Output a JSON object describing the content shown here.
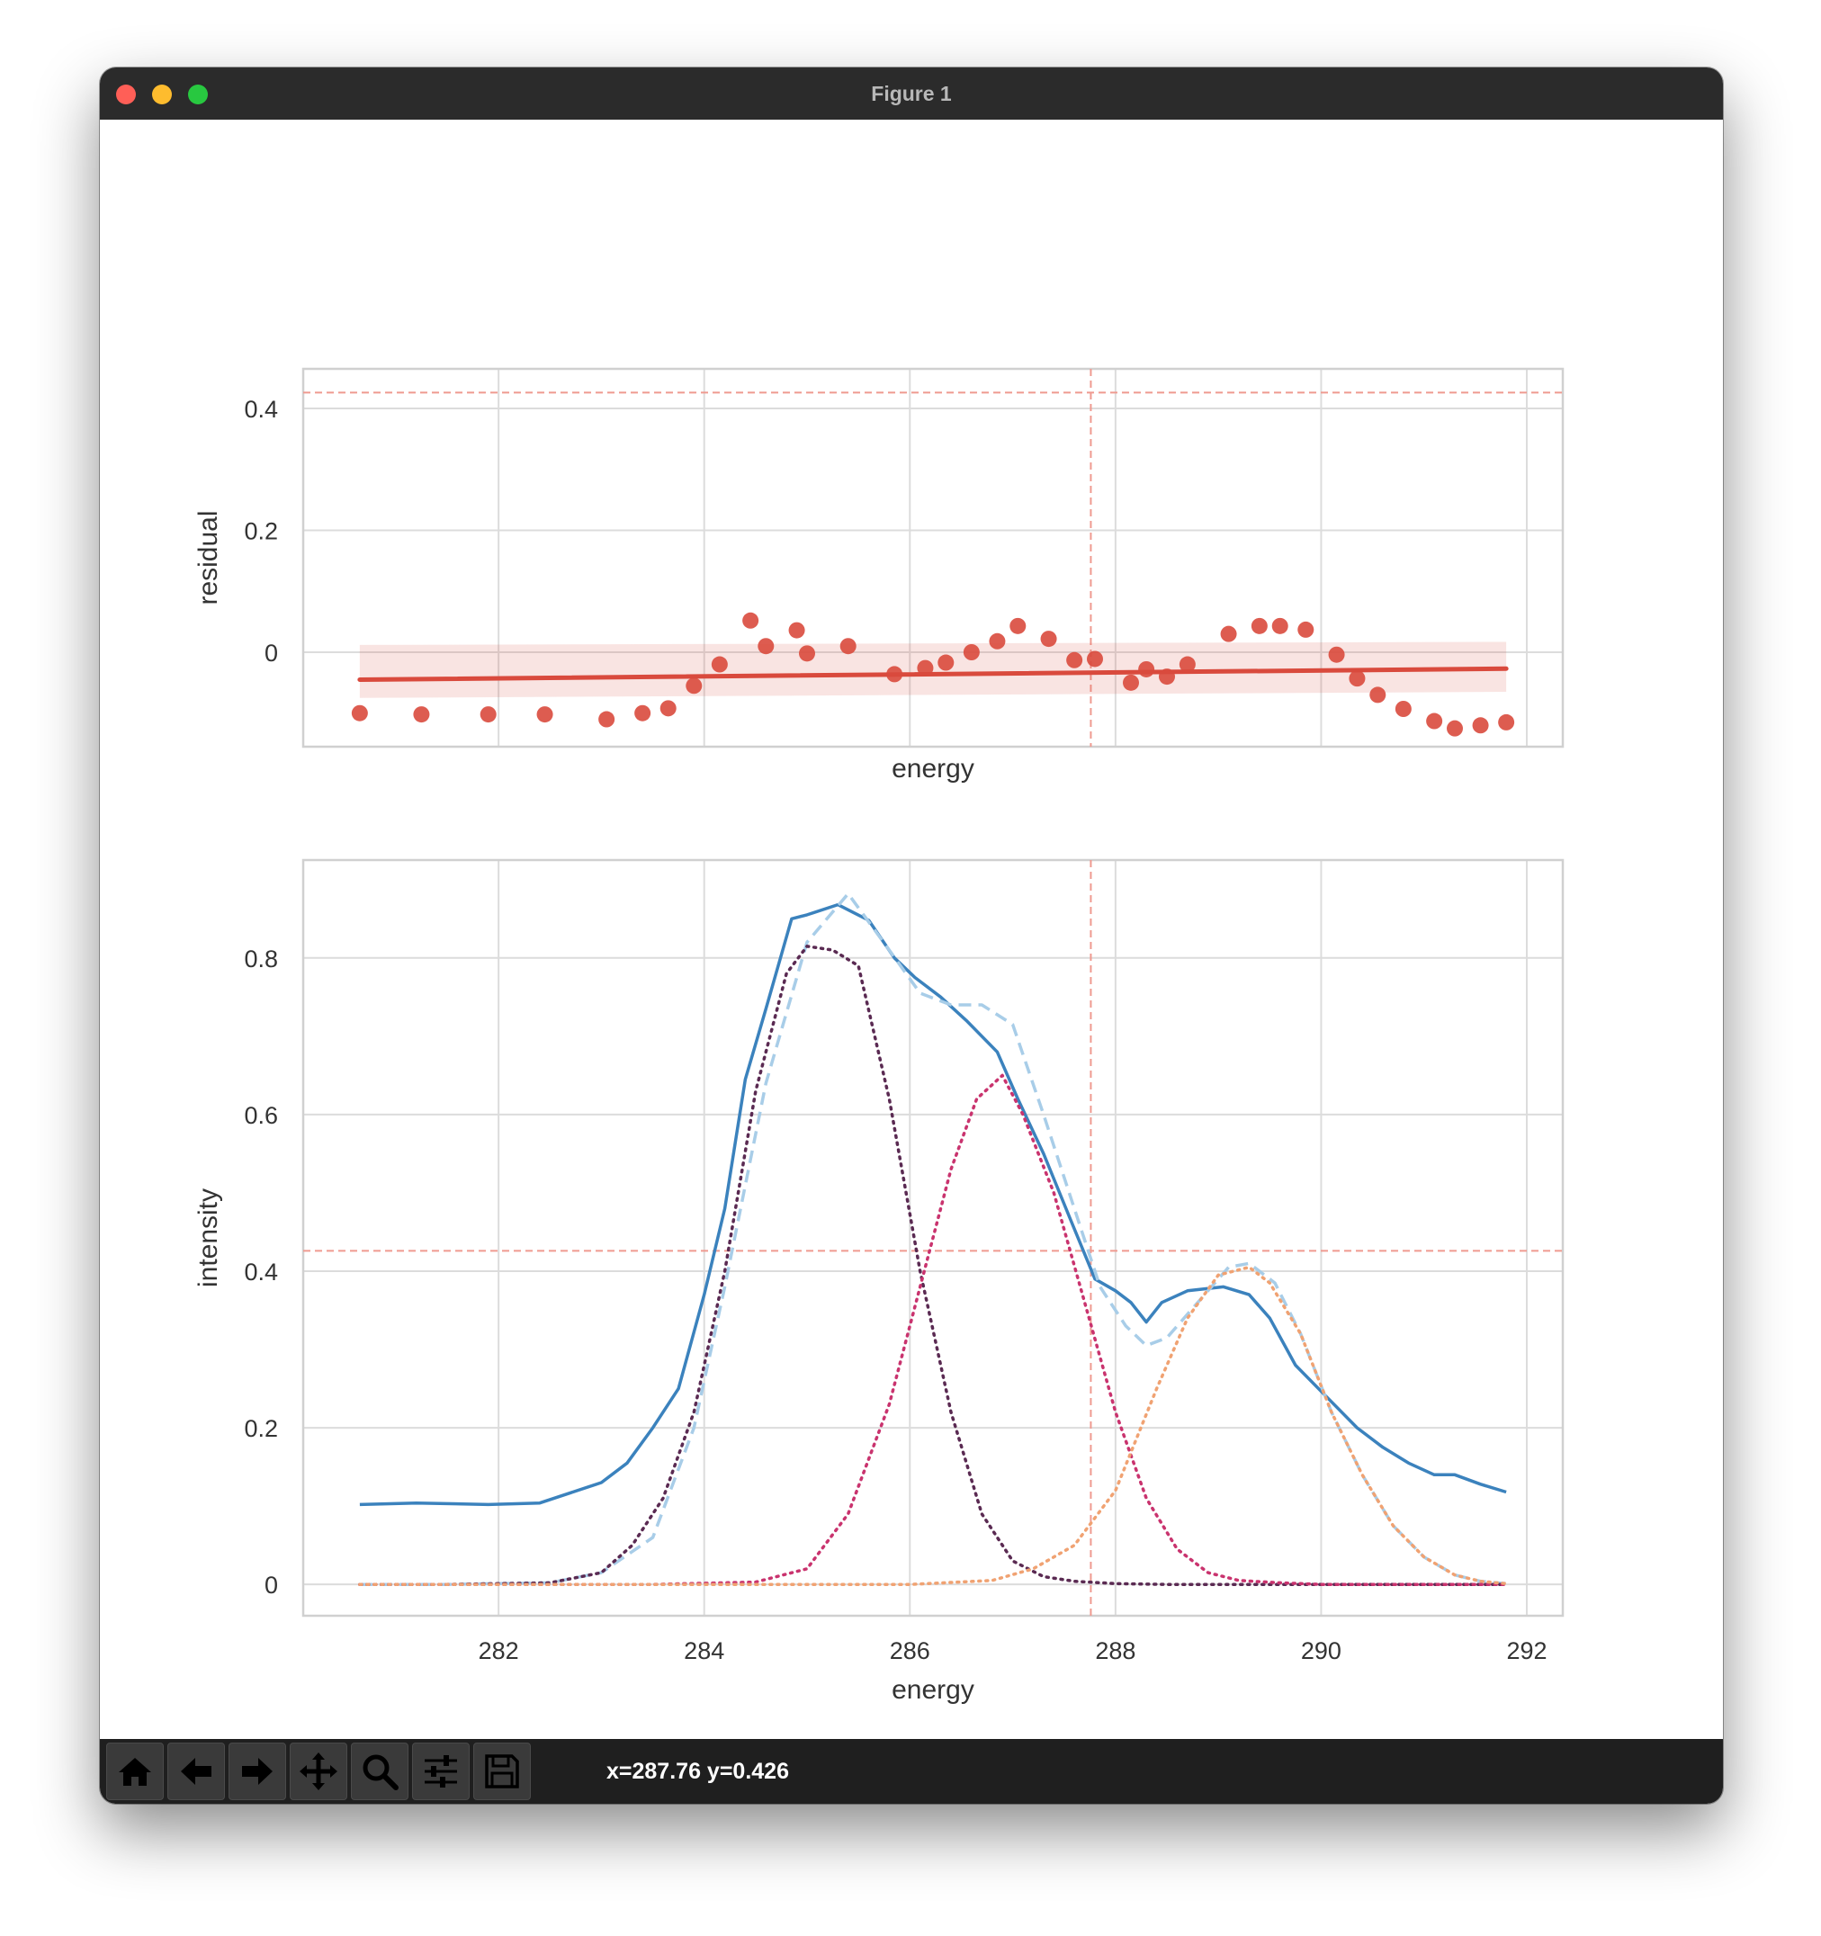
{
  "window": {
    "title": "Figure 1"
  },
  "toolbar": {
    "buttons": [
      {
        "name": "home-button",
        "icon": "home-icon"
      },
      {
        "name": "back-button",
        "icon": "arrow-left-icon"
      },
      {
        "name": "forward-button",
        "icon": "arrow-right-icon"
      },
      {
        "name": "pan-button",
        "icon": "move-icon"
      },
      {
        "name": "zoom-button",
        "icon": "magnifier-icon"
      },
      {
        "name": "configure-subplots-button",
        "icon": "sliders-icon"
      },
      {
        "name": "save-button",
        "icon": "floppy-disk-icon"
      }
    ],
    "coords": "x=287.76 y=0.426"
  },
  "chart_data": [
    {
      "type": "scatter",
      "xlabel": "energy",
      "ylabel": "residual",
      "xlim": [
        280.1,
        292.35
      ],
      "ylim": [
        -0.155,
        0.465
      ],
      "yticks": [
        0.0,
        0.2,
        0.4
      ],
      "xticks": [
        282,
        284,
        286,
        288,
        290,
        292
      ],
      "grid": true,
      "crosshair": {
        "x": 287.76,
        "y": 0.426
      },
      "points_color": "#d94a3d",
      "points": {
        "x": [
          280.65,
          281.25,
          281.9,
          282.45,
          283.05,
          283.4,
          283.65,
          283.9,
          284.15,
          284.45,
          284.6,
          284.9,
          285.0,
          285.4,
          285.85,
          286.15,
          286.35,
          286.6,
          286.85,
          287.05,
          287.35,
          287.6,
          287.8,
          288.15,
          288.3,
          288.5,
          288.7,
          289.1,
          289.4,
          289.6,
          289.85,
          290.15,
          290.35,
          290.55,
          290.8,
          291.1,
          291.3,
          291.55,
          291.8
        ],
        "y": [
          -0.1,
          -0.102,
          -0.102,
          -0.102,
          -0.11,
          -0.1,
          -0.092,
          -0.055,
          -0.02,
          0.052,
          0.01,
          0.036,
          -0.002,
          0.01,
          -0.036,
          -0.026,
          -0.017,
          0.0,
          0.018,
          0.043,
          0.022,
          -0.013,
          -0.011,
          -0.05,
          -0.028,
          -0.04,
          -0.02,
          0.03,
          0.043,
          0.043,
          0.037,
          -0.004,
          -0.043,
          -0.07,
          -0.093,
          -0.113,
          -0.125,
          -0.12,
          -0.115
        ]
      },
      "fit_line": {
        "color": "#d94a3d",
        "x": [
          280.65,
          291.8
        ],
        "y": [
          -0.045,
          -0.027
        ],
        "band_lower": [
          -0.075,
          -0.065
        ],
        "band_upper": [
          0.012,
          0.017
        ]
      }
    },
    {
      "type": "line",
      "xlabel": "energy",
      "ylabel": "intensity",
      "xlim": [
        280.1,
        292.35
      ],
      "ylim": [
        -0.04,
        0.925
      ],
      "xticks": [
        282,
        284,
        286,
        288,
        290,
        292
      ],
      "yticks": [
        0.0,
        0.2,
        0.4,
        0.6,
        0.8
      ],
      "grid": true,
      "crosshair": {
        "x": 287.76,
        "y": 0.426
      },
      "series": [
        {
          "style": "solid",
          "color": "#3b82bd",
          "x": [
            280.65,
            281.2,
            281.9,
            282.4,
            283.0,
            283.25,
            283.5,
            283.75,
            284.0,
            284.2,
            284.4,
            284.6,
            284.85,
            285.0,
            285.3,
            285.6,
            285.85,
            286.05,
            286.3,
            286.55,
            286.85,
            287.05,
            287.3,
            287.55,
            287.8,
            288.0,
            288.15,
            288.3,
            288.45,
            288.7,
            289.05,
            289.3,
            289.5,
            289.75,
            290.05,
            290.35,
            290.6,
            290.85,
            291.1,
            291.3,
            291.55,
            291.8
          ],
          "y": [
            0.102,
            0.104,
            0.102,
            0.104,
            0.13,
            0.155,
            0.2,
            0.25,
            0.37,
            0.48,
            0.645,
            0.735,
            0.85,
            0.855,
            0.868,
            0.848,
            0.8,
            0.775,
            0.75,
            0.72,
            0.68,
            0.62,
            0.55,
            0.47,
            0.39,
            0.375,
            0.36,
            0.335,
            0.36,
            0.375,
            0.38,
            0.37,
            0.34,
            0.28,
            0.24,
            0.2,
            0.175,
            0.155,
            0.14,
            0.14,
            0.128,
            0.118
          ]
        },
        {
          "style": "dashed",
          "color": "#a8cde8",
          "x": [
            280.65,
            281.5,
            282.5,
            283.0,
            283.5,
            283.9,
            284.2,
            284.6,
            285.0,
            285.4,
            285.8,
            286.1,
            286.4,
            286.7,
            287.0,
            287.3,
            287.6,
            287.85,
            288.1,
            288.3,
            288.5,
            288.8,
            289.1,
            289.3,
            289.55,
            289.8,
            290.1,
            290.4,
            290.7,
            291.0,
            291.3,
            291.55,
            291.8
          ],
          "y": [
            0.0,
            0.0,
            0.002,
            0.015,
            0.06,
            0.2,
            0.38,
            0.64,
            0.82,
            0.882,
            0.81,
            0.755,
            0.74,
            0.74,
            0.715,
            0.6,
            0.48,
            0.38,
            0.33,
            0.305,
            0.315,
            0.36,
            0.405,
            0.41,
            0.385,
            0.32,
            0.22,
            0.14,
            0.075,
            0.035,
            0.012,
            0.004,
            0.001
          ]
        },
        {
          "style": "dotted",
          "color": "#5a2a52",
          "x": [
            280.65,
            281.5,
            282.5,
            283.0,
            283.3,
            283.6,
            283.9,
            284.2,
            284.5,
            284.8,
            285.0,
            285.25,
            285.5,
            285.8,
            286.1,
            286.4,
            286.7,
            287.0,
            287.3,
            287.6,
            288.0,
            288.5,
            289.0,
            290.0,
            291.0,
            291.8
          ],
          "y": [
            0.0,
            0.0,
            0.002,
            0.015,
            0.05,
            0.11,
            0.22,
            0.4,
            0.63,
            0.78,
            0.815,
            0.81,
            0.79,
            0.62,
            0.4,
            0.22,
            0.09,
            0.03,
            0.01,
            0.004,
            0.001,
            0.0,
            0.0,
            0.0,
            0.0,
            0.0
          ]
        },
        {
          "style": "dotted",
          "color": "#c9336e",
          "x": [
            280.65,
            283.5,
            284.5,
            285.0,
            285.4,
            285.8,
            286.1,
            286.4,
            286.65,
            286.9,
            287.1,
            287.4,
            287.7,
            288.0,
            288.3,
            288.6,
            288.9,
            289.2,
            289.6,
            290.0,
            291.0,
            291.8
          ],
          "y": [
            0.0,
            0.0,
            0.003,
            0.02,
            0.09,
            0.23,
            0.38,
            0.53,
            0.62,
            0.65,
            0.6,
            0.5,
            0.36,
            0.22,
            0.11,
            0.045,
            0.015,
            0.005,
            0.002,
            0.0,
            0.0,
            0.0
          ]
        },
        {
          "style": "dotted",
          "color": "#f0a272",
          "x": [
            280.65,
            284.0,
            286.0,
            286.8,
            287.2,
            287.6,
            288.0,
            288.4,
            288.7,
            289.0,
            289.3,
            289.5,
            289.8,
            290.1,
            290.4,
            290.7,
            291.0,
            291.3,
            291.55,
            291.8
          ],
          "y": [
            0.0,
            0.0,
            0.0,
            0.005,
            0.02,
            0.05,
            0.12,
            0.25,
            0.34,
            0.395,
            0.405,
            0.385,
            0.32,
            0.22,
            0.14,
            0.075,
            0.035,
            0.012,
            0.004,
            0.001
          ]
        }
      ]
    }
  ]
}
